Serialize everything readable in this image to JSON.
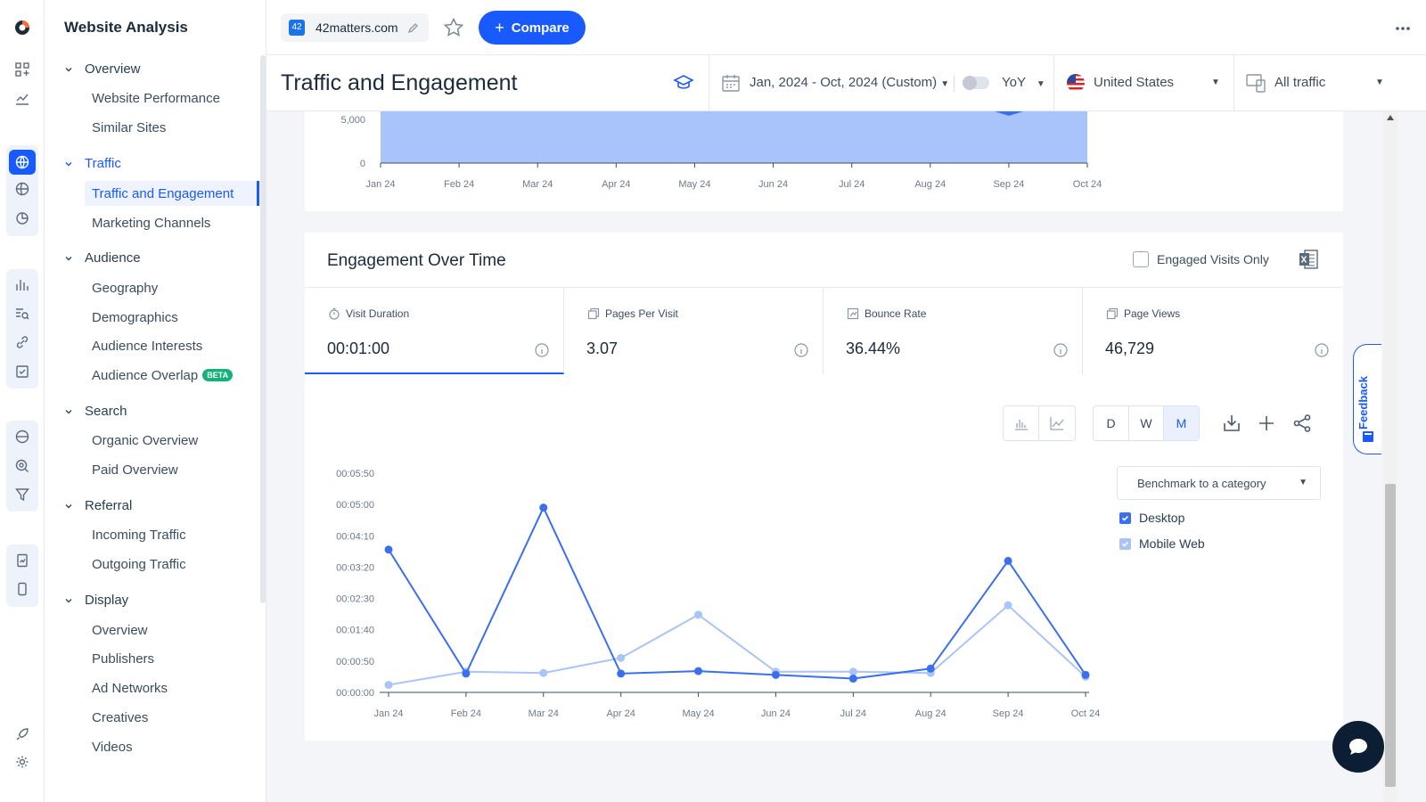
{
  "nav": {
    "title": "Website Analysis",
    "sections": [
      {
        "label": "Overview",
        "items": [
          "Website Performance",
          "Similar Sites"
        ]
      },
      {
        "label": "Traffic",
        "items": [
          "Traffic and Engagement",
          "Marketing Channels"
        ]
      },
      {
        "label": "Audience",
        "items": [
          "Geography",
          "Demographics",
          "Audience Interests",
          "Audience Overlap"
        ]
      },
      {
        "label": "Search",
        "items": [
          "Organic Overview",
          "Paid Overview"
        ]
      },
      {
        "label": "Referral",
        "items": [
          "Incoming Traffic",
          "Outgoing Traffic"
        ]
      },
      {
        "label": "Display",
        "items": [
          "Overview",
          "Publishers",
          "Ad Networks",
          "Creatives",
          "Videos"
        ]
      }
    ],
    "beta_badge": "BETA"
  },
  "topbar": {
    "site_favicon": "42",
    "site_name": "42matters.com",
    "compare_label": "Compare"
  },
  "header": {
    "title": "Traffic and Engagement",
    "date_range": "Jan, 2024 - Oct, 2024 (Custom)",
    "yoy_label": "YoY",
    "country": "United States",
    "traffic_type": "All traffic"
  },
  "colors": {
    "accent": "#195afe",
    "desktop_series": "#3a6ff0",
    "mobile_series": "#a8c4fb",
    "area_fill": "#a8c4fb"
  },
  "top_chart": {
    "y_ticks": [
      "5,000",
      "0"
    ],
    "x_ticks": [
      "Jan 24",
      "Feb 24",
      "Mar 24",
      "Apr 24",
      "May 24",
      "Jun 24",
      "Jul 24",
      "Aug 24",
      "Sep 24",
      "Oct 24"
    ]
  },
  "engagement": {
    "title": "Engagement Over Time",
    "engaged_only_label": "Engaged Visits Only",
    "metrics": [
      {
        "label": "Visit Duration",
        "value": "00:01:00"
      },
      {
        "label": "Pages Per Visit",
        "value": "3.07"
      },
      {
        "label": "Bounce Rate",
        "value": "36.44%"
      },
      {
        "label": "Page Views",
        "value": "46,729"
      }
    ],
    "granularity": [
      "D",
      "W",
      "M"
    ],
    "benchmark_label": "Benchmark to a category",
    "legend": [
      "Desktop",
      "Mobile Web"
    ]
  },
  "chart_data": {
    "type": "line",
    "x": [
      "Jan 24",
      "Feb 24",
      "Mar 24",
      "Apr 24",
      "May 24",
      "Jun 24",
      "Jul 24",
      "Aug 24",
      "Sep 24",
      "Oct 24"
    ],
    "y_ticks": [
      "00:00:00",
      "00:00:50",
      "00:01:40",
      "00:02:30",
      "00:03:20",
      "00:04:10",
      "00:05:00",
      "00:05:50"
    ],
    "ylim": [
      0,
      350
    ],
    "series": [
      {
        "name": "Desktop",
        "values": [
          228,
          30,
          295,
          30,
          34,
          28,
          22,
          38,
          210,
          28
        ]
      },
      {
        "name": "Mobile Web",
        "values": [
          12,
          33,
          31,
          55,
          124,
          33,
          33,
          31,
          139,
          25
        ]
      }
    ]
  },
  "feedback_label": "Feedback"
}
